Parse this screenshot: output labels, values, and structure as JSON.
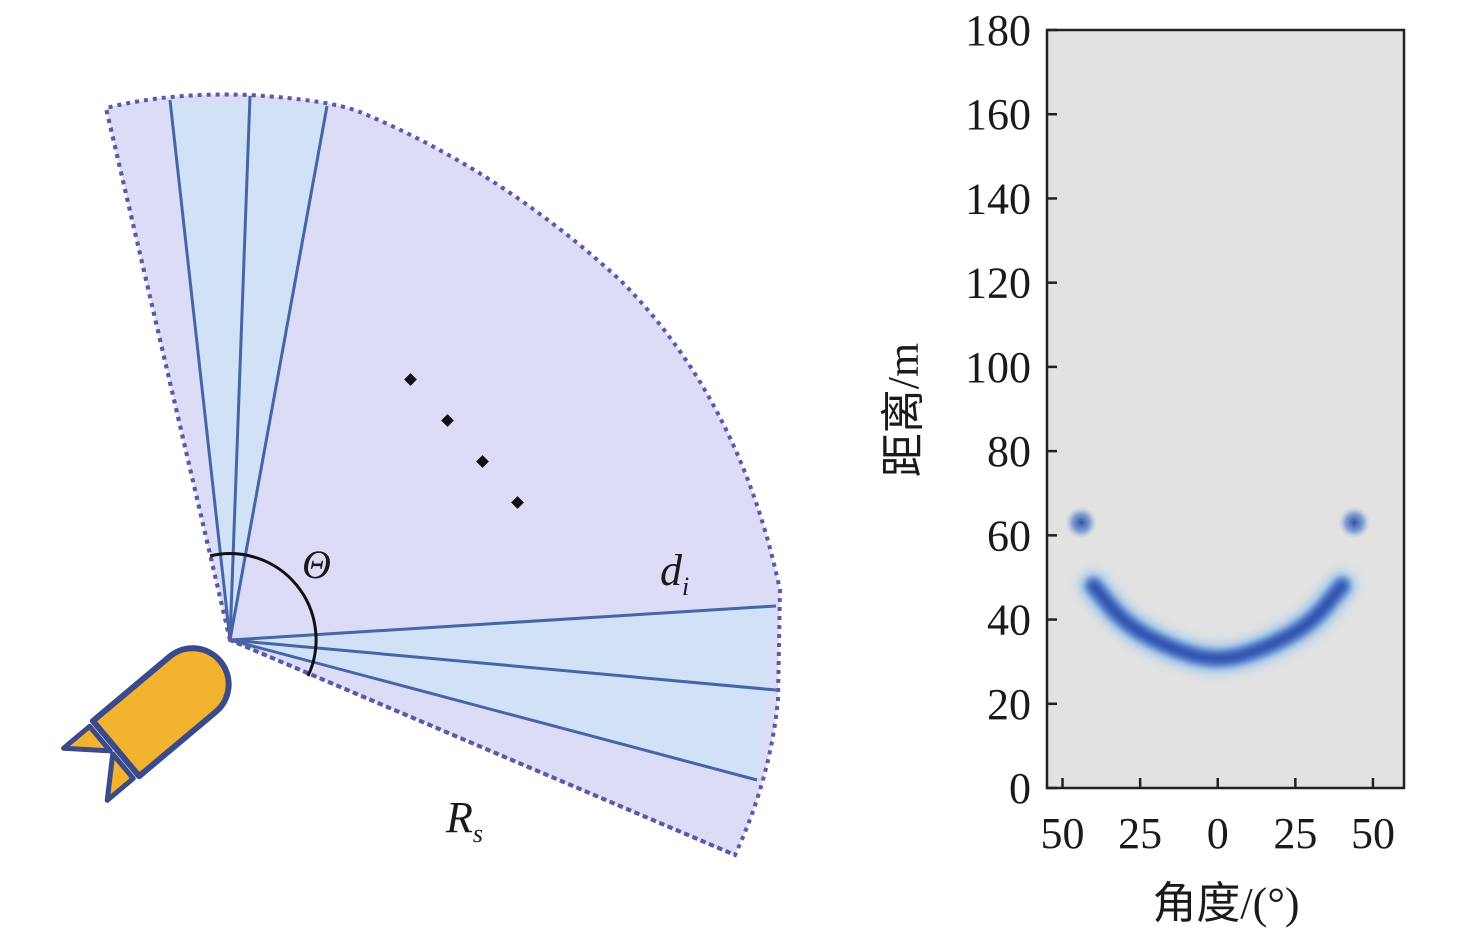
{
  "sonar_diagram": {
    "angle_label": "Θ",
    "beam_label_main": "d",
    "beam_label_sub": "i",
    "range_label_main": "R",
    "range_label_sub": "s",
    "sector_fill": "#dcdcf7",
    "sector_border": "#5a5aa8",
    "beam_color": "#4664a8",
    "beam_fill": "#cfe3f7",
    "vehicle_color": "#f2b32e",
    "vehicle_outline": "#3a4a8a",
    "target_count": 4
  },
  "chart_data": {
    "type": "heatmap",
    "xlabel": "角度/(°)",
    "ylabel": "距离/m",
    "x_tick_labels": [
      "50",
      "25",
      "0",
      "25",
      "50"
    ],
    "x_tick_values": [
      -50,
      -25,
      0,
      25,
      50
    ],
    "y_ticks": [
      0,
      20,
      40,
      60,
      80,
      100,
      120,
      140,
      160,
      180
    ],
    "xlim": [
      -55,
      60
    ],
    "ylim": [
      0,
      180
    ],
    "background": "#e2e2e2",
    "intensity_color": "#2a4aa8",
    "arc": {
      "description_points": [
        {
          "angle": -40,
          "range": 48
        },
        {
          "angle": -30,
          "range": 39
        },
        {
          "angle": -15,
          "range": 33
        },
        {
          "angle": 0,
          "range": 30
        },
        {
          "angle": 15,
          "range": 33
        },
        {
          "angle": 30,
          "range": 39
        },
        {
          "angle": 40,
          "range": 48
        }
      ]
    },
    "spots": [
      {
        "angle": -44,
        "range": 63
      },
      {
        "angle": 44,
        "range": 63
      }
    ]
  }
}
